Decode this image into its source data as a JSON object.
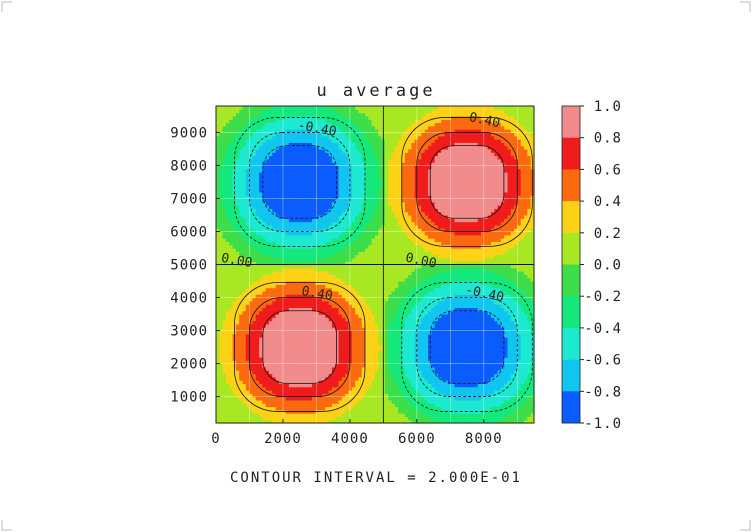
{
  "chart_data": {
    "type": "heatmap",
    "subtype": "filled-contour",
    "title": "u average",
    "xlim": [
      0,
      9500
    ],
    "ylim": [
      200,
      9800
    ],
    "x_ticks": [
      "0",
      "2000",
      "4000",
      "6000",
      "8000"
    ],
    "x_tick_values": [
      0,
      2000,
      4000,
      6000,
      8000
    ],
    "y_ticks": [
      "1000",
      "2000",
      "3000",
      "4000",
      "5000",
      "6000",
      "7000",
      "8000",
      "9000"
    ],
    "y_tick_values": [
      1000,
      2000,
      3000,
      4000,
      5000,
      6000,
      7000,
      8000,
      9000
    ],
    "grid": true,
    "extrema": [
      {
        "x": 2500,
        "y": 7500,
        "value": -1.0
      },
      {
        "x": 7500,
        "y": 7500,
        "value": 1.0
      },
      {
        "x": 2500,
        "y": 2500,
        "value": 1.0
      },
      {
        "x": 7500,
        "y": 2500,
        "value": -1.0
      }
    ],
    "quadrant_boundary": {
      "x": 5000,
      "y": 5000
    },
    "contour_labels": [
      {
        "text": "-0.40",
        "x": 3000,
        "y": 9000
      },
      {
        "text": "0.40",
        "x": 8000,
        "y": 9250
      },
      {
        "text": "0.00",
        "x": 600,
        "y": 5000
      },
      {
        "text": "0.00",
        "x": 6100,
        "y": 5000
      },
      {
        "text": "0.40",
        "x": 3000,
        "y": 4000
      },
      {
        "text": "-0.40",
        "x": 8000,
        "y": 4000
      }
    ],
    "colorbar": {
      "labels": [
        "1.0",
        "0.8",
        "0.6",
        "0.4",
        "0.2",
        "0.0",
        "-0.2",
        "-0.4",
        "-0.6",
        "-0.8",
        "-1.0"
      ],
      "levels": [
        {
          "min": 0.8,
          "max": 1.0,
          "color": "#f28b8b"
        },
        {
          "min": 0.6,
          "max": 0.8,
          "color": "#f01c1c"
        },
        {
          "min": 0.4,
          "max": 0.6,
          "color": "#fb6a0e"
        },
        {
          "min": 0.2,
          "max": 0.4,
          "color": "#fbd215"
        },
        {
          "min": 0.0,
          "max": 0.2,
          "color": "#a8e823"
        },
        {
          "min": -0.2,
          "max": 0.0,
          "color": "#3ede4a"
        },
        {
          "min": -0.4,
          "max": -0.2,
          "color": "#15e87d"
        },
        {
          "min": -0.6,
          "max": -0.4,
          "color": "#1de9d1"
        },
        {
          "min": -0.8,
          "max": -0.6,
          "color": "#10c6f0"
        },
        {
          "min": -1.0,
          "max": -0.8,
          "color": "#0a5cff"
        }
      ]
    }
  },
  "footer": "CONTOUR INTERVAL = 2.000E-01"
}
